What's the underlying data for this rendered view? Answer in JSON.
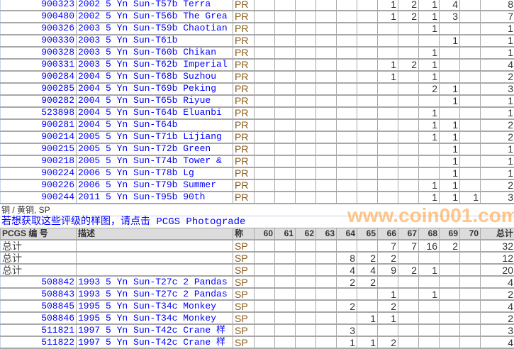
{
  "grade_columns": [
    "60",
    "61",
    "62",
    "63",
    "64",
    "65",
    "66",
    "67",
    "68",
    "69",
    "70"
  ],
  "proof_rows": [
    {
      "pcgs": "900323",
      "desc": "2002 5 Yn Sun-T57b Terra",
      "prefix": "PR",
      "grades": {
        "66": "1",
        "67": "2",
        "68": "1",
        "69": "4"
      },
      "total": "8"
    },
    {
      "pcgs": "900480",
      "desc": "2002 5 Yn Sun-T56b The Grea",
      "prefix": "PR",
      "grades": {
        "66": "1",
        "67": "2",
        "68": "1",
        "69": "3"
      },
      "total": "7"
    },
    {
      "pcgs": "900326",
      "desc": "2003 5 Yn Sun-T59b Chaotian",
      "prefix": "PR",
      "grades": {
        "68": "1"
      },
      "total": "1"
    },
    {
      "pcgs": "900330",
      "desc": "2003 5 Yn Sun-T61b",
      "prefix": "PR",
      "grades": {
        "69": "1"
      },
      "total": "1"
    },
    {
      "pcgs": "900328",
      "desc": "2003 5 Yn Sun-T60b Chikan",
      "prefix": "PR",
      "grades": {
        "68": "1"
      },
      "total": "1"
    },
    {
      "pcgs": "900331",
      "desc": "2003 5 Yn Sun-T62b Imperial",
      "prefix": "PR",
      "grades": {
        "66": "1",
        "67": "2",
        "68": "1"
      },
      "total": "4"
    },
    {
      "pcgs": "900284",
      "desc": "2004 5 Yn Sun-T68b Suzhou",
      "prefix": "PR",
      "grades": {
        "66": "1",
        "68": "1"
      },
      "total": "2"
    },
    {
      "pcgs": "900285",
      "desc": "2004 5 Yn Sun-T69b Peking",
      "prefix": "PR",
      "grades": {
        "68": "2",
        "69": "1"
      },
      "total": "3"
    },
    {
      "pcgs": "900282",
      "desc": "2004 5 Yn Sun-T65b Riyue",
      "prefix": "PR",
      "grades": {
        "69": "1"
      },
      "total": "1"
    },
    {
      "pcgs": "523898",
      "desc": "2004 5 Yn Sun-T64b Eluanbi",
      "prefix": "PR",
      "grades": {
        "68": "1"
      },
      "total": "1"
    },
    {
      "pcgs": "900281",
      "desc": "2004 5 Yn Sun-T64b",
      "prefix": "PR",
      "grades": {
        "68": "1",
        "69": "1"
      },
      "total": "2"
    },
    {
      "pcgs": "900214",
      "desc": "2005 5 Yn Sun-T71b Lijiang",
      "prefix": "PR",
      "grades": {
        "68": "1",
        "69": "1"
      },
      "total": "2"
    },
    {
      "pcgs": "900215",
      "desc": "2005 5 Yn Sun-T72b Green",
      "prefix": "PR",
      "grades": {
        "69": "1"
      },
      "total": "1"
    },
    {
      "pcgs": "900218",
      "desc": "2005 5 Yn Sun-T74b Tower &",
      "prefix": "PR",
      "grades": {
        "69": "1"
      },
      "total": "1"
    },
    {
      "pcgs": "900224",
      "desc": "2006 5 Yn Sun-T78b Lg",
      "prefix": "PR",
      "grades": {
        "69": "1"
      },
      "total": "1"
    },
    {
      "pcgs": "900226",
      "desc": "2006 5 Yn Sun-T79b Summer",
      "prefix": "PR",
      "grades": {
        "68": "1",
        "69": "1"
      },
      "total": "2"
    },
    {
      "pcgs": "900244",
      "desc": "2011 5 Yn Sun-T95b 90th",
      "prefix": "PR",
      "grades": {
        "68": "1",
        "69": "1",
        "70": "1"
      },
      "total": "3"
    }
  ],
  "section_label": "铜 / 黄铜, SP",
  "photograde_link": "若想获取这些评级的样图，请点击 PCGS Photograde",
  "header": {
    "pcgs": "PCGS 编 号",
    "desc": "描述",
    "prefix": "称",
    "total": "总计"
  },
  "sp_rows": [
    {
      "pcgs": "总计",
      "desc": "",
      "prefix": "SP",
      "grades": {
        "66": "7",
        "67": "7",
        "68": "16",
        "69": "2"
      },
      "total": "32",
      "is_total": true
    },
    {
      "pcgs": "总计",
      "desc": "",
      "prefix": "SP",
      "grades": {
        "64": "8",
        "65": "2",
        "66": "2"
      },
      "total": "12",
      "is_total": true
    },
    {
      "pcgs": "总计",
      "desc": "",
      "prefix": "SP",
      "grades": {
        "64": "4",
        "65": "4",
        "66": "9",
        "67": "2",
        "68": "1"
      },
      "total": "20",
      "is_total": true
    },
    {
      "pcgs": "508842",
      "desc": "1993 5 Yn Sun-T27c 2 Pandas",
      "prefix": "SP",
      "grades": {
        "64": "2",
        "65": "2"
      },
      "total": "4"
    },
    {
      "pcgs": "508843",
      "desc": "1993 5 Yn Sun-T27c 2 Pandas",
      "prefix": "SP",
      "grades": {
        "66": "1",
        "68": "1"
      },
      "total": "2"
    },
    {
      "pcgs": "508845",
      "desc": "1995 5 Yn Sun-T34c Monkey",
      "prefix": "SP",
      "grades": {
        "64": "2",
        "66": "2"
      },
      "total": "4"
    },
    {
      "pcgs": "508846",
      "desc": "1995 5 Yn Sun-T34c Monkey",
      "prefix": "SP",
      "grades": {
        "65": "1",
        "66": "1"
      },
      "total": "2"
    },
    {
      "pcgs": "511821",
      "desc": "1997 5 Yn Sun-T42c Crane 样",
      "prefix": "SP",
      "grades": {
        "64": "3"
      },
      "total": "3"
    },
    {
      "pcgs": "511822",
      "desc": "1997 5 Yn Sun-T42c Crane 样",
      "prefix": "SP",
      "grades": {
        "64": "1",
        "65": "1",
        "66": "2"
      },
      "total": "4"
    }
  ],
  "watermark": "www.coin001.com"
}
